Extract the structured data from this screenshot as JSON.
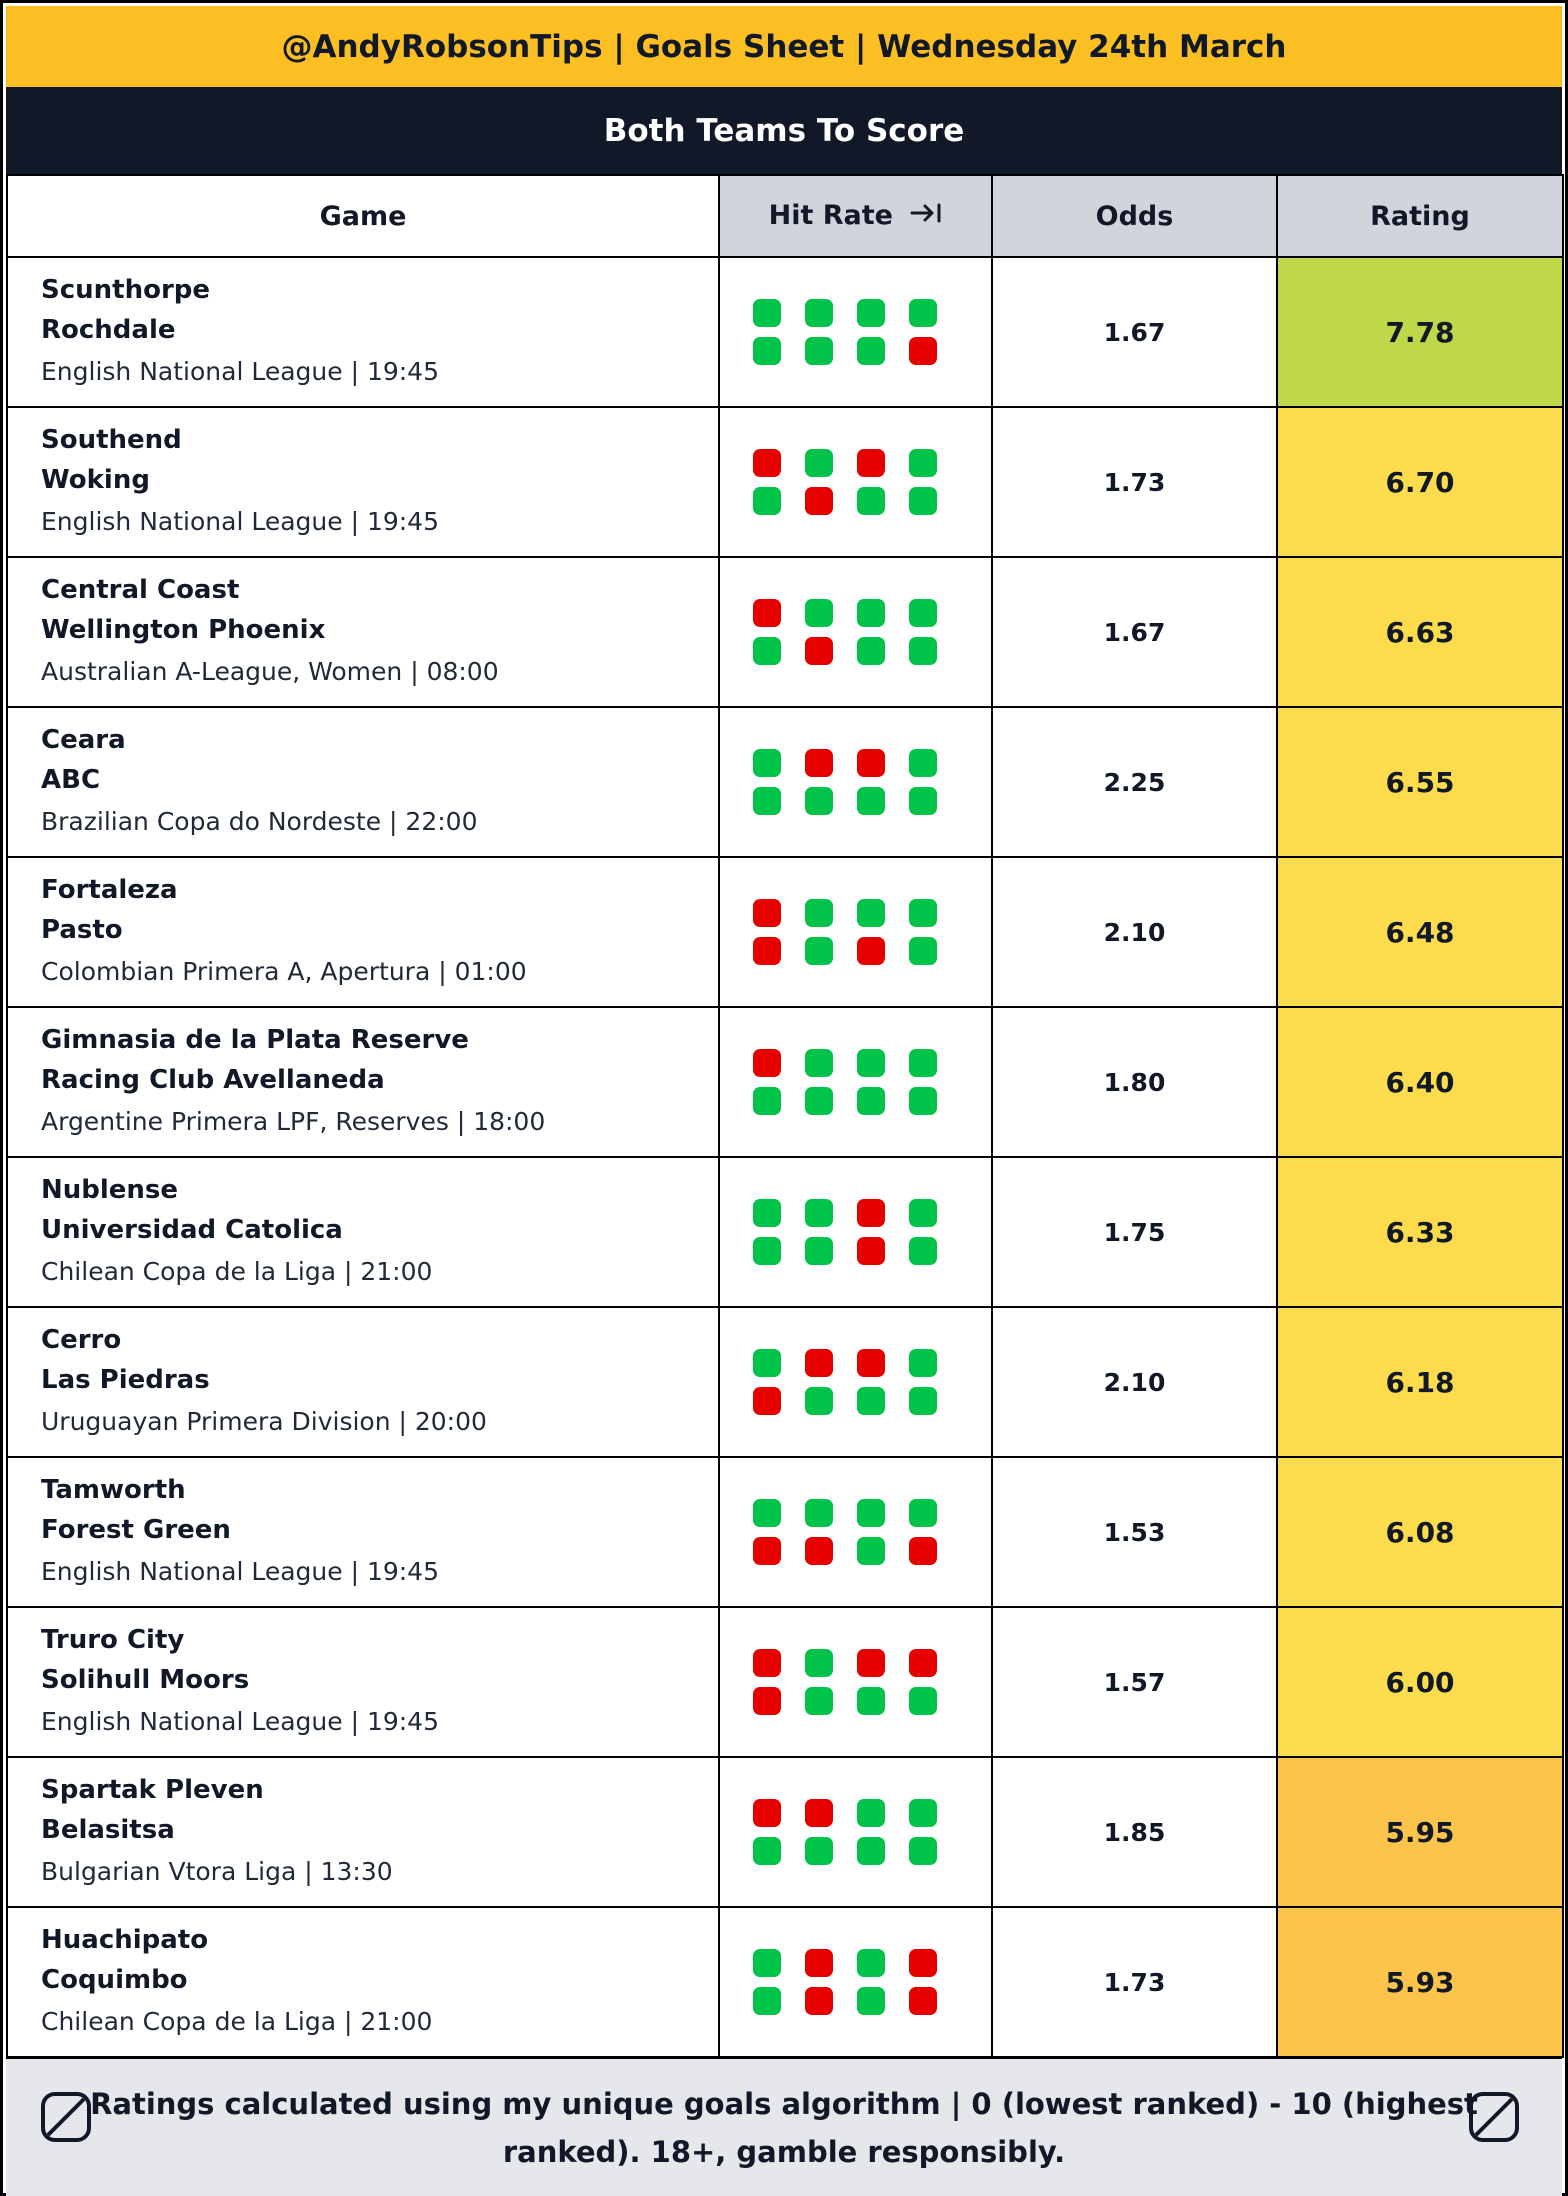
{
  "header": {
    "title": "@AndyRobsonTips | Goals Sheet | Wednesday 24th March"
  },
  "section": {
    "title": "Both Teams To Score"
  },
  "columns": {
    "game": "Game",
    "hit_rate": "Hit Rate",
    "odds": "Odds",
    "rating": "Rating"
  },
  "colors": {
    "hit": "#00c34a",
    "miss": "#e60000",
    "rating_high": "#bfd84a",
    "rating_mid": "#fcdc4d",
    "rating_low": "#fcc44a"
  },
  "rows": [
    {
      "home": "Scunthorpe",
      "away": "Rochdale",
      "league": "English National League | 19:45",
      "odds": "1.67",
      "rating": "7.78",
      "tier": "high",
      "hit_rate": [
        [
          "hit",
          "hit",
          "hit",
          "hit"
        ],
        [
          "hit",
          "hit",
          "hit",
          "miss"
        ]
      ]
    },
    {
      "home": "Southend",
      "away": "Woking",
      "league": "English National League | 19:45",
      "odds": "1.73",
      "rating": "6.70",
      "tier": "mid",
      "hit_rate": [
        [
          "miss",
          "hit",
          "miss",
          "hit"
        ],
        [
          "hit",
          "miss",
          "hit",
          "hit"
        ]
      ]
    },
    {
      "home": "Central Coast",
      "away": "Wellington Phoenix",
      "league": "Australian A-League, Women | 08:00",
      "odds": "1.67",
      "rating": "6.63",
      "tier": "mid",
      "hit_rate": [
        [
          "miss",
          "hit",
          "hit",
          "hit"
        ],
        [
          "hit",
          "miss",
          "hit",
          "hit"
        ]
      ]
    },
    {
      "home": "Ceara",
      "away": "ABC",
      "league": "Brazilian Copa do Nordeste | 22:00",
      "odds": "2.25",
      "rating": "6.55",
      "tier": "mid",
      "hit_rate": [
        [
          "hit",
          "miss",
          "miss",
          "hit"
        ],
        [
          "hit",
          "hit",
          "hit",
          "hit"
        ]
      ]
    },
    {
      "home": "Fortaleza",
      "away": "Pasto",
      "league": "Colombian Primera A, Apertura | 01:00",
      "odds": "2.10",
      "rating": "6.48",
      "tier": "mid",
      "hit_rate": [
        [
          "miss",
          "hit",
          "hit",
          "hit"
        ],
        [
          "miss",
          "hit",
          "miss",
          "hit"
        ]
      ]
    },
    {
      "home": "Gimnasia de la Plata Reserve",
      "away": "Racing Club Avellaneda",
      "league": "Argentine Primera LPF, Reserves | 18:00",
      "odds": "1.80",
      "rating": "6.40",
      "tier": "mid",
      "hit_rate": [
        [
          "miss",
          "hit",
          "hit",
          "hit"
        ],
        [
          "hit",
          "hit",
          "hit",
          "hit"
        ]
      ]
    },
    {
      "home": "Nublense",
      "away": "Universidad Catolica",
      "league": "Chilean Copa de la Liga | 21:00",
      "odds": "1.75",
      "rating": "6.33",
      "tier": "mid",
      "hit_rate": [
        [
          "hit",
          "hit",
          "miss",
          "hit"
        ],
        [
          "hit",
          "hit",
          "miss",
          "hit"
        ]
      ]
    },
    {
      "home": "Cerro",
      "away": "Las Piedras",
      "league": "Uruguayan Primera Division | 20:00",
      "odds": "2.10",
      "rating": "6.18",
      "tier": "mid",
      "hit_rate": [
        [
          "hit",
          "miss",
          "miss",
          "hit"
        ],
        [
          "miss",
          "hit",
          "hit",
          "hit"
        ]
      ]
    },
    {
      "home": "Tamworth",
      "away": "Forest Green",
      "league": "English National League | 19:45",
      "odds": "1.53",
      "rating": "6.08",
      "tier": "mid",
      "hit_rate": [
        [
          "hit",
          "hit",
          "hit",
          "hit"
        ],
        [
          "miss",
          "miss",
          "hit",
          "miss"
        ]
      ]
    },
    {
      "home": "Truro City",
      "away": "Solihull Moors",
      "league": "English National League | 19:45",
      "odds": "1.57",
      "rating": "6.00",
      "tier": "mid",
      "hit_rate": [
        [
          "miss",
          "hit",
          "miss",
          "miss"
        ],
        [
          "miss",
          "hit",
          "hit",
          "hit"
        ]
      ]
    },
    {
      "home": "Spartak Pleven",
      "away": "Belasitsa",
      "league": "Bulgarian Vtora Liga | 13:30",
      "odds": "1.85",
      "rating": "5.95",
      "tier": "low",
      "hit_rate": [
        [
          "miss",
          "miss",
          "hit",
          "hit"
        ],
        [
          "hit",
          "hit",
          "hit",
          "hit"
        ]
      ]
    },
    {
      "home": "Huachipato",
      "away": "Coquimbo",
      "league": "Chilean Copa de la Liga | 21:00",
      "odds": "1.73",
      "rating": "5.93",
      "tier": "low",
      "hit_rate": [
        [
          "hit",
          "miss",
          "hit",
          "miss"
        ],
        [
          "hit",
          "miss",
          "hit",
          "miss"
        ]
      ]
    }
  ],
  "footer": {
    "text": "Ratings calculated using my unique goals algorithm | 0 (lowest ranked) - 10 (highest ranked). 18+, gamble responsibly."
  },
  "icons": {
    "hit_rate_header": "arrow-right-to-bar-icon",
    "footer_left": "no-entry-18-icon",
    "footer_right": "no-entry-18-icon"
  }
}
